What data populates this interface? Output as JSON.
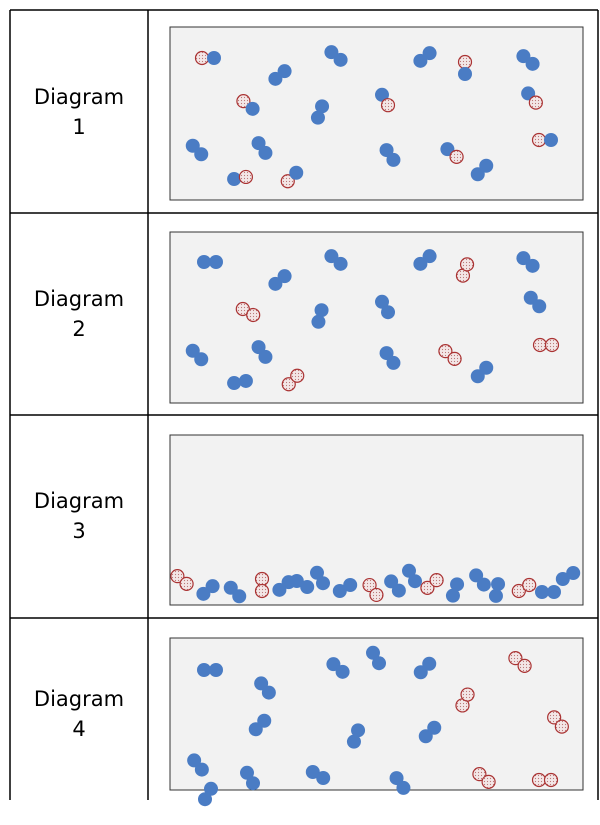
{
  "rows": [
    {
      "label": "Diagram",
      "number": "1"
    },
    {
      "label": "Diagram",
      "number": "2"
    },
    {
      "label": "Diagram",
      "number": "3"
    },
    {
      "label": "Diagram",
      "number": "4"
    }
  ]
}
